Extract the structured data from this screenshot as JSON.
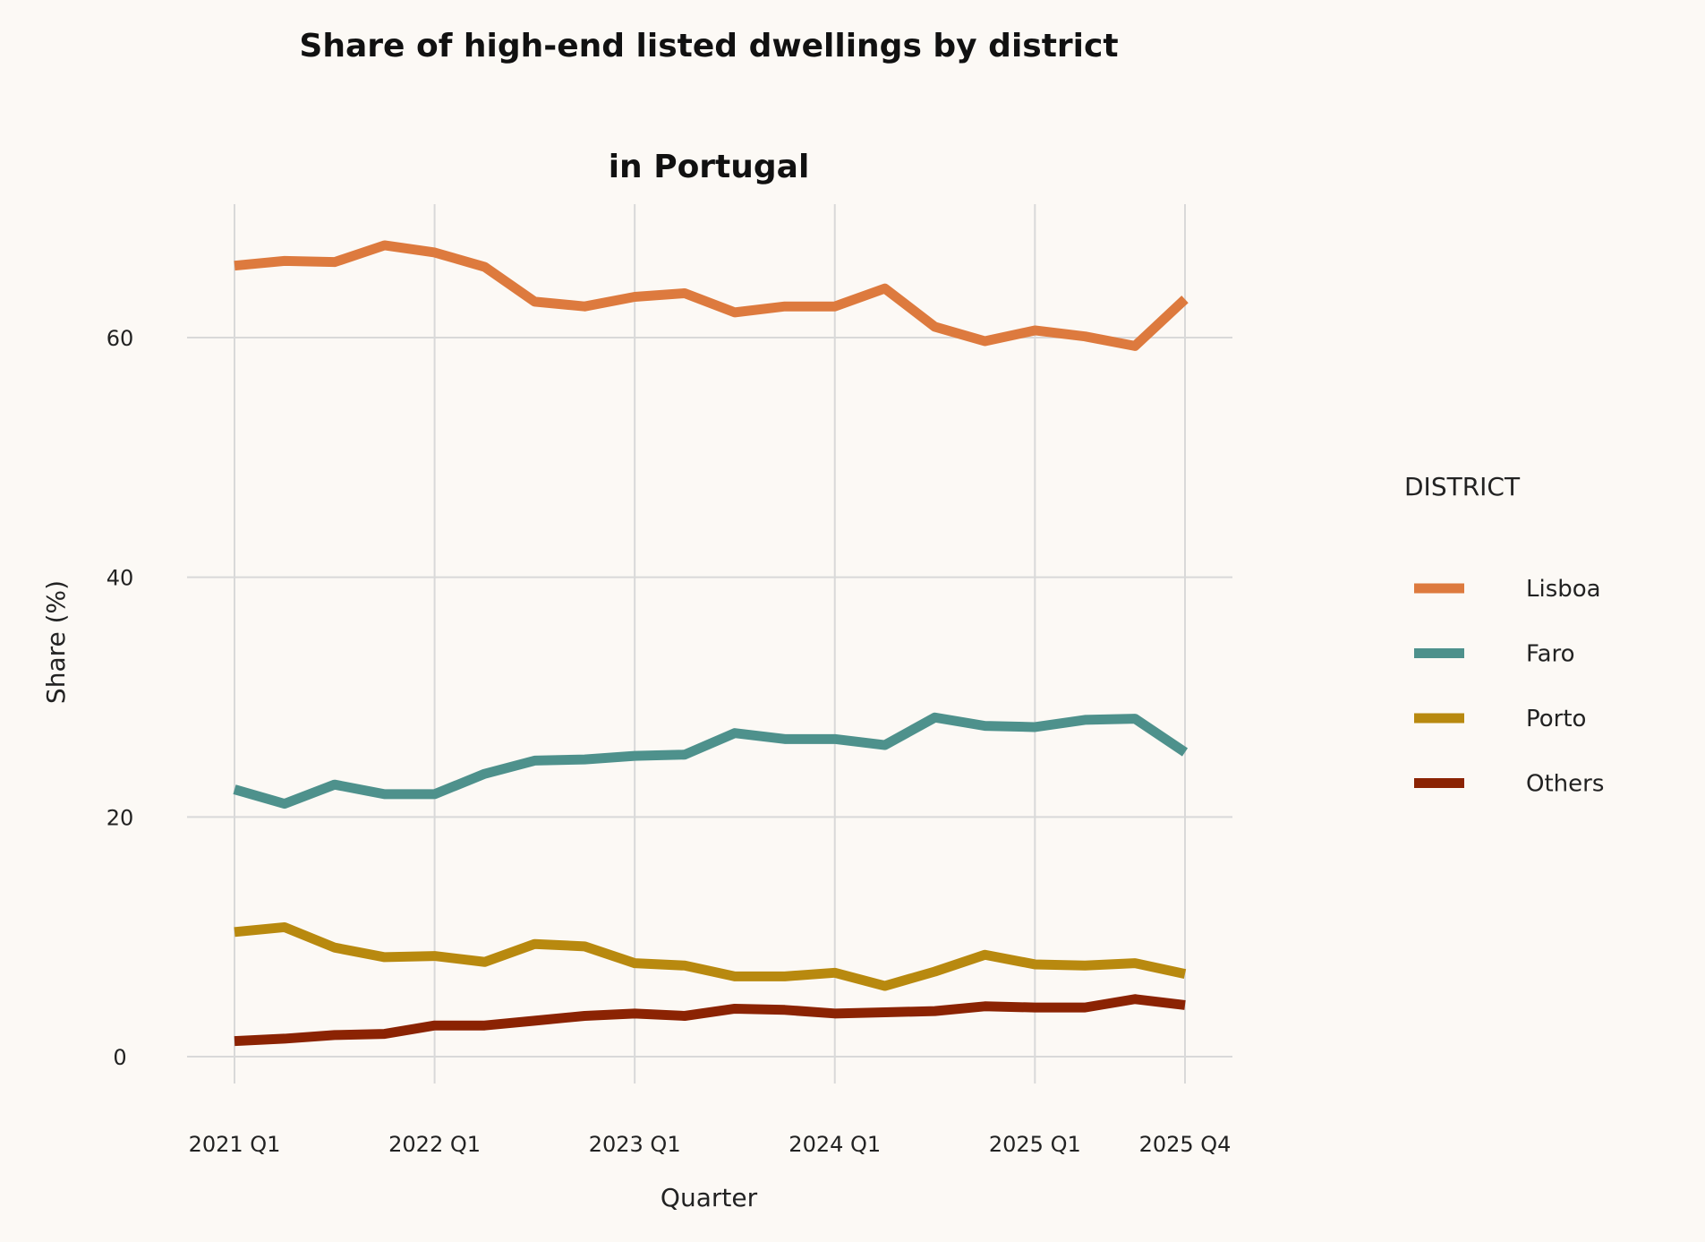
{
  "chart_data": {
    "type": "line",
    "title": [
      "Share of high-end listed dwellings by district",
      "in Portugal"
    ],
    "xlabel": "Quarter",
    "ylabel": "Share (%)",
    "x": [
      "2021 Q1",
      "2021 Q2",
      "2021 Q3",
      "2021 Q4",
      "2022 Q1",
      "2022 Q2",
      "2022 Q3",
      "2022 Q4",
      "2023 Q1",
      "2023 Q2",
      "2023 Q3",
      "2023 Q4",
      "2024 Q1",
      "2024 Q2",
      "2024 Q3",
      "2024 Q4",
      "2025 Q1",
      "2025 Q2",
      "2025 Q3",
      "2025 Q4"
    ],
    "x_ticks": [
      "2021 Q1",
      "2022 Q1",
      "2023 Q1",
      "2024 Q1",
      "2025 Q1",
      "2025 Q4"
    ],
    "y_ticks": [
      0,
      20,
      40,
      60
    ],
    "ylim": [
      -2,
      71
    ],
    "grid": true,
    "legend_title": "DISTRICT",
    "legend_position": "right",
    "series": [
      {
        "name": "Lisboa",
        "color": "#dd7a3e",
        "values": [
          66.0,
          66.4,
          66.3,
          67.7,
          67.1,
          65.9,
          63.0,
          62.6,
          63.4,
          63.7,
          62.1,
          62.6,
          62.6,
          64.1,
          60.9,
          59.7,
          60.6,
          60.1,
          59.3,
          63.2
        ]
      },
      {
        "name": "Faro",
        "color": "#4e918c",
        "values": [
          22.3,
          21.1,
          22.7,
          21.9,
          21.9,
          23.6,
          24.7,
          24.8,
          25.1,
          25.2,
          27.0,
          26.5,
          26.5,
          26.0,
          28.3,
          27.6,
          27.5,
          28.1,
          28.2,
          25.4
        ]
      },
      {
        "name": "Porto",
        "color": "#b8890f",
        "values": [
          10.4,
          10.8,
          9.1,
          8.3,
          8.4,
          7.9,
          9.4,
          9.2,
          7.8,
          7.6,
          6.7,
          6.7,
          7.0,
          5.9,
          7.1,
          8.5,
          7.7,
          7.6,
          7.8,
          6.9
        ]
      },
      {
        "name": "Others",
        "color": "#8b2303",
        "values": [
          1.3,
          1.5,
          1.8,
          1.9,
          2.6,
          2.6,
          3.0,
          3.4,
          3.6,
          3.4,
          4.0,
          3.9,
          3.6,
          3.7,
          3.8,
          4.2,
          4.1,
          4.1,
          4.8,
          4.3
        ]
      }
    ]
  }
}
